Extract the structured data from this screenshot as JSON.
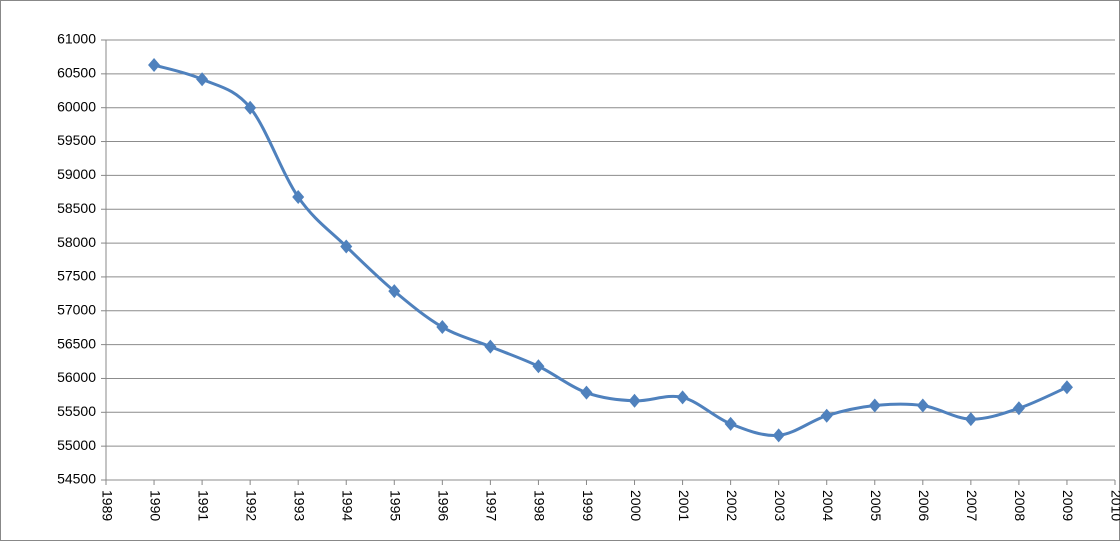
{
  "chart_data": {
    "type": "line",
    "x": [
      1990,
      1991,
      1992,
      1993,
      1994,
      1995,
      1996,
      1997,
      1998,
      1999,
      2000,
      2001,
      2002,
      2003,
      2004,
      2005,
      2006,
      2007,
      2008,
      2009
    ],
    "series": [
      {
        "color": "#4f81bd",
        "values": [
          60630,
          60420,
          60000,
          58680,
          57950,
          57290,
          56760,
          56470,
          56180,
          55790,
          55670,
          55720,
          55330,
          55160,
          55450,
          55600,
          55600,
          55400,
          55560,
          55870
        ]
      }
    ],
    "xlim": [
      1989,
      2010
    ],
    "xticks": [
      1989,
      1990,
      1991,
      1992,
      1993,
      1994,
      1995,
      1996,
      1997,
      1998,
      1999,
      2000,
      2001,
      2002,
      2003,
      2004,
      2005,
      2006,
      2007,
      2008,
      2009,
      2010
    ],
    "ylim": [
      54500,
      61000
    ],
    "yticks": [
      54500,
      55000,
      55500,
      56000,
      56500,
      57000,
      57500,
      58000,
      58500,
      59000,
      59500,
      60000,
      60500,
      61000
    ],
    "grid": true
  }
}
